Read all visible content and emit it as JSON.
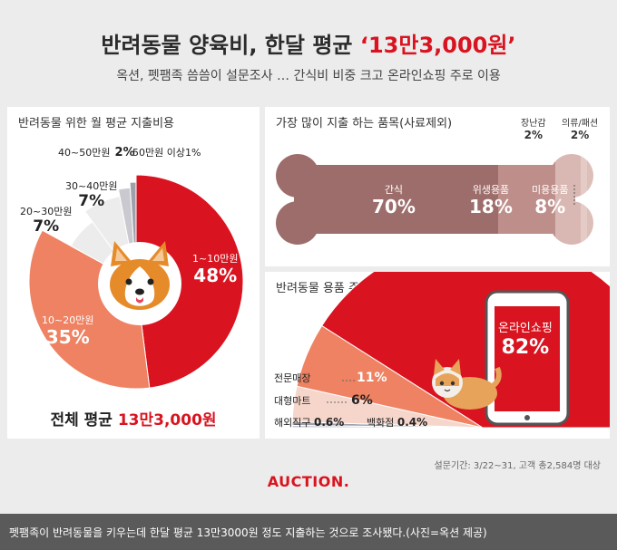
{
  "header": {
    "title_main": "반려동물 양육비, 한달 평균 ",
    "title_highlight": "‘13만3,000원’",
    "subtitle": "옥션, 펫팸족 씀씀이 설문조사 … 간식비 비중 크고 온라인쇼핑 주로 이용"
  },
  "colors": {
    "accent": "#d9131f",
    "salmon": "#ee8262",
    "light_gray": "#ececec",
    "mid_gray": "#c9c9cf",
    "bone_dark": "#9c6d6a",
    "bone_mid": "#bd8e8a",
    "bone_light": "#d9b8b3"
  },
  "chart_data": [
    {
      "type": "pie",
      "title": "반려동물 위한 월 평균 지출비용",
      "categories": [
        "1~10만원",
        "10~20만원",
        "20~30만원",
        "30~40만원",
        "40~50만원",
        "50만원 이상"
      ],
      "values": [
        48,
        35,
        7,
        7,
        2,
        1
      ],
      "value_labels": [
        "48%",
        "35%",
        "7%",
        "7%",
        "2%",
        "1%"
      ],
      "center_icon": "corgi-dog-icon",
      "summary_label": "전체 평균 ",
      "summary_value": "13만3,000원"
    },
    {
      "type": "bar",
      "title": "가장 많이 지출 하는 품목(사료제외)",
      "categories": [
        "간식",
        "위생용품",
        "미용용품",
        "장난감",
        "의류/패션"
      ],
      "values": [
        70,
        18,
        8,
        2,
        2
      ],
      "value_labels": [
        "70%",
        "18%",
        "8%",
        "2%",
        "2%"
      ],
      "shape": "bone"
    },
    {
      "type": "pie",
      "title": "반려동물 용품 주 구매 채널",
      "categories": [
        "온라인쇼핑",
        "전문매장",
        "대형마트",
        "해외직구",
        "백화점"
      ],
      "values": [
        82,
        11,
        6,
        0.6,
        0.4
      ],
      "value_labels": [
        "82%",
        "11%",
        "6%",
        "0.6%",
        "0.4%"
      ],
      "icons": [
        "smartphone-icon",
        "cat-icon"
      ]
    }
  ],
  "footer": {
    "survey_note": "설문기간: 3/22~31, 고객 총2,584명 대상",
    "logo": "AUCTION.",
    "caption": "펫팸족이 반려동물을 키우는데 한달 평균 13만3000원 정도 지출하는 것으로 조사됐다.(사진=옥션 제공)"
  }
}
